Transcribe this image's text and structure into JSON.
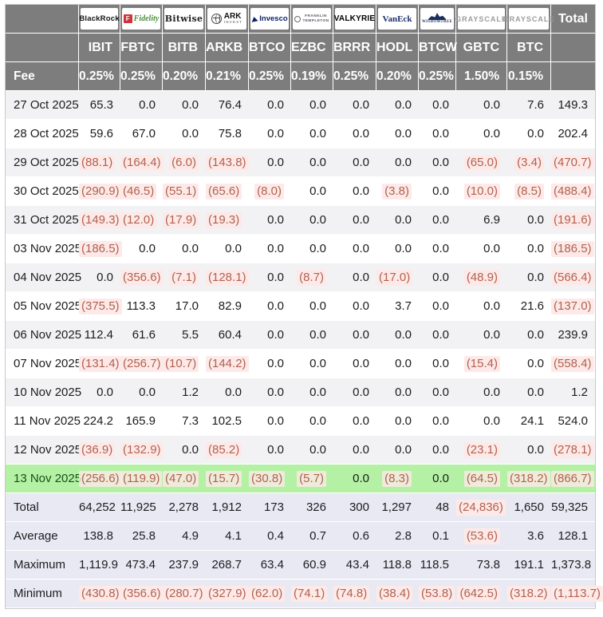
{
  "header": {
    "fee_label": "Fee",
    "total_label": "Total",
    "columns": [
      {
        "ticker": "IBIT",
        "fee": "0.25%",
        "provider": "BlackRock",
        "logo": "blackrock",
        "logo_text": "BlackRock"
      },
      {
        "ticker": "FBTC",
        "fee": "0.25%",
        "provider": "Fidelity",
        "logo": "fidelity",
        "logo_text": "Fidelity"
      },
      {
        "ticker": "BITB",
        "fee": "0.20%",
        "provider": "Bitwise",
        "logo": "bitwise",
        "logo_text": "Bitwise"
      },
      {
        "ticker": "ARKB",
        "fee": "0.21%",
        "provider": "ARK Invest",
        "logo": "ark",
        "logo_text": "ARK INVEST"
      },
      {
        "ticker": "BTCO",
        "fee": "0.25%",
        "provider": "Invesco",
        "logo": "invesco",
        "logo_text": "Invesco"
      },
      {
        "ticker": "EZBC",
        "fee": "0.19%",
        "provider": "Franklin Templeton",
        "logo": "franklin",
        "logo_text": "FRANKLIN TEMPLETON"
      },
      {
        "ticker": "BRRR",
        "fee": "0.25%",
        "provider": "Valkyrie",
        "logo": "valkyrie",
        "logo_text": "VALKYRIE"
      },
      {
        "ticker": "HODL",
        "fee": "0.20%",
        "provider": "VanEck",
        "logo": "vaneck",
        "logo_text": "VanEck"
      },
      {
        "ticker": "BTCW",
        "fee": "0.25%",
        "provider": "WisdomTree",
        "logo": "wisdomtree",
        "logo_text": "WISDOMTREE"
      },
      {
        "ticker": "GBTC",
        "fee": "1.50%",
        "provider": "Grayscale",
        "logo": "grayscale",
        "logo_text": "GRAYSCALE"
      },
      {
        "ticker": "BTC",
        "fee": "0.15%",
        "provider": "Grayscale",
        "logo": "grayscale",
        "logo_text": "GRAYSCALE"
      }
    ]
  },
  "rows": [
    {
      "label": "27 Oct 2025",
      "highlight": null,
      "values": [
        "65.3",
        "0.0",
        "0.0",
        "76.4",
        "0.0",
        "0.0",
        "0.0",
        "0.0",
        "0.0",
        "0.0",
        "7.6",
        "149.3"
      ]
    },
    {
      "label": "28 Oct 2025",
      "highlight": null,
      "values": [
        "59.6",
        "67.0",
        "0.0",
        "75.8",
        "0.0",
        "0.0",
        "0.0",
        "0.0",
        "0.0",
        "0.0",
        "0.0",
        "202.4"
      ]
    },
    {
      "label": "29 Oct 2025",
      "highlight": null,
      "values": [
        "(88.1)",
        "(164.4)",
        "(6.0)",
        "(143.8)",
        "0.0",
        "0.0",
        "0.0",
        "0.0",
        "0.0",
        "(65.0)",
        "(3.4)",
        "(470.7)"
      ]
    },
    {
      "label": "30 Oct 2025",
      "highlight": null,
      "values": [
        "(290.9)",
        "(46.5)",
        "(55.1)",
        "(65.6)",
        "(8.0)",
        "0.0",
        "0.0",
        "(3.8)",
        "0.0",
        "(10.0)",
        "(8.5)",
        "(488.4)"
      ]
    },
    {
      "label": "31 Oct 2025",
      "highlight": null,
      "values": [
        "(149.3)",
        "(12.0)",
        "(17.9)",
        "(19.3)",
        "0.0",
        "0.0",
        "0.0",
        "0.0",
        "0.0",
        "6.9",
        "0.0",
        "(191.6)"
      ]
    },
    {
      "label": "03 Nov 2025",
      "highlight": null,
      "values": [
        "(186.5)",
        "0.0",
        "0.0",
        "0.0",
        "0.0",
        "0.0",
        "0.0",
        "0.0",
        "0.0",
        "0.0",
        "0.0",
        "(186.5)"
      ]
    },
    {
      "label": "04 Nov 2025",
      "highlight": null,
      "values": [
        "0.0",
        "(356.6)",
        "(7.1)",
        "(128.1)",
        "0.0",
        "(8.7)",
        "0.0",
        "(17.0)",
        "0.0",
        "(48.9)",
        "0.0",
        "(566.4)"
      ]
    },
    {
      "label": "05 Nov 2025",
      "highlight": null,
      "values": [
        "(375.5)",
        "113.3",
        "17.0",
        "82.9",
        "0.0",
        "0.0",
        "0.0",
        "3.7",
        "0.0",
        "0.0",
        "21.6",
        "(137.0)"
      ]
    },
    {
      "label": "06 Nov 2025",
      "highlight": null,
      "values": [
        "112.4",
        "61.6",
        "5.5",
        "60.4",
        "0.0",
        "0.0",
        "0.0",
        "0.0",
        "0.0",
        "0.0",
        "0.0",
        "239.9"
      ]
    },
    {
      "label": "07 Nov 2025",
      "highlight": null,
      "values": [
        "(131.4)",
        "(256.7)",
        "(10.7)",
        "(144.2)",
        "0.0",
        "0.0",
        "0.0",
        "0.0",
        "0.0",
        "(15.4)",
        "0.0",
        "(558.4)"
      ]
    },
    {
      "label": "10 Nov 2025",
      "highlight": null,
      "values": [
        "0.0",
        "0.0",
        "1.2",
        "0.0",
        "0.0",
        "0.0",
        "0.0",
        "0.0",
        "0.0",
        "0.0",
        "0.0",
        "1.2"
      ]
    },
    {
      "label": "11 Nov 2025",
      "highlight": null,
      "values": [
        "224.2",
        "165.9",
        "7.3",
        "102.5",
        "0.0",
        "0.0",
        "0.0",
        "0.0",
        "0.0",
        "0.0",
        "24.1",
        "524.0"
      ]
    },
    {
      "label": "12 Nov 2025",
      "highlight": null,
      "values": [
        "(36.9)",
        "(132.9)",
        "0.0",
        "(85.2)",
        "0.0",
        "0.0",
        "0.0",
        "0.0",
        "0.0",
        "(23.1)",
        "0.0",
        "(278.1)"
      ]
    },
    {
      "label": "13 Nov 2025",
      "highlight": "green",
      "values": [
        "(256.6)",
        "(119.9)",
        "(47.0)",
        "(15.7)",
        "(30.8)",
        "(5.7)",
        "0.0",
        "(8.3)",
        "0.0",
        "(64.5)",
        "(318.2)",
        "(866.7)"
      ]
    }
  ],
  "footer": [
    {
      "label": "Total",
      "values": [
        "64,252",
        "11,925",
        "2,278",
        "1,912",
        "173",
        "326",
        "300",
        "1,297",
        "48",
        "(24,836)",
        "1,650",
        "59,325"
      ]
    },
    {
      "label": "Average",
      "values": [
        "138.8",
        "25.8",
        "4.9",
        "4.1",
        "0.4",
        "0.7",
        "0.6",
        "2.8",
        "0.1",
        "(53.6)",
        "3.6",
        "128.1"
      ]
    },
    {
      "label": "Maximum",
      "values": [
        "1,119.9",
        "473.4",
        "237.9",
        "268.7",
        "63.4",
        "60.9",
        "43.4",
        "118.8",
        "118.5",
        "73.8",
        "191.1",
        "1,373.8"
      ]
    },
    {
      "label": "Minimum",
      "values": [
        "(430.8)",
        "(356.6)",
        "(280.7)",
        "(327.9)",
        "(62.0)",
        "(74.1)",
        "(74.8)",
        "(38.4)",
        "(53.8)",
        "(642.5)",
        "(318.2)",
        "(1,113.7)"
      ]
    }
  ],
  "colors": {
    "header_bg": "#7d7d7d",
    "negative_text": "#b2604e",
    "negative_bg": "#fdeae8",
    "highlight_row_bg": "#b4f1a4",
    "footer_bg": "#e9e9f4",
    "stripe_bg": "#f2f2f4"
  }
}
